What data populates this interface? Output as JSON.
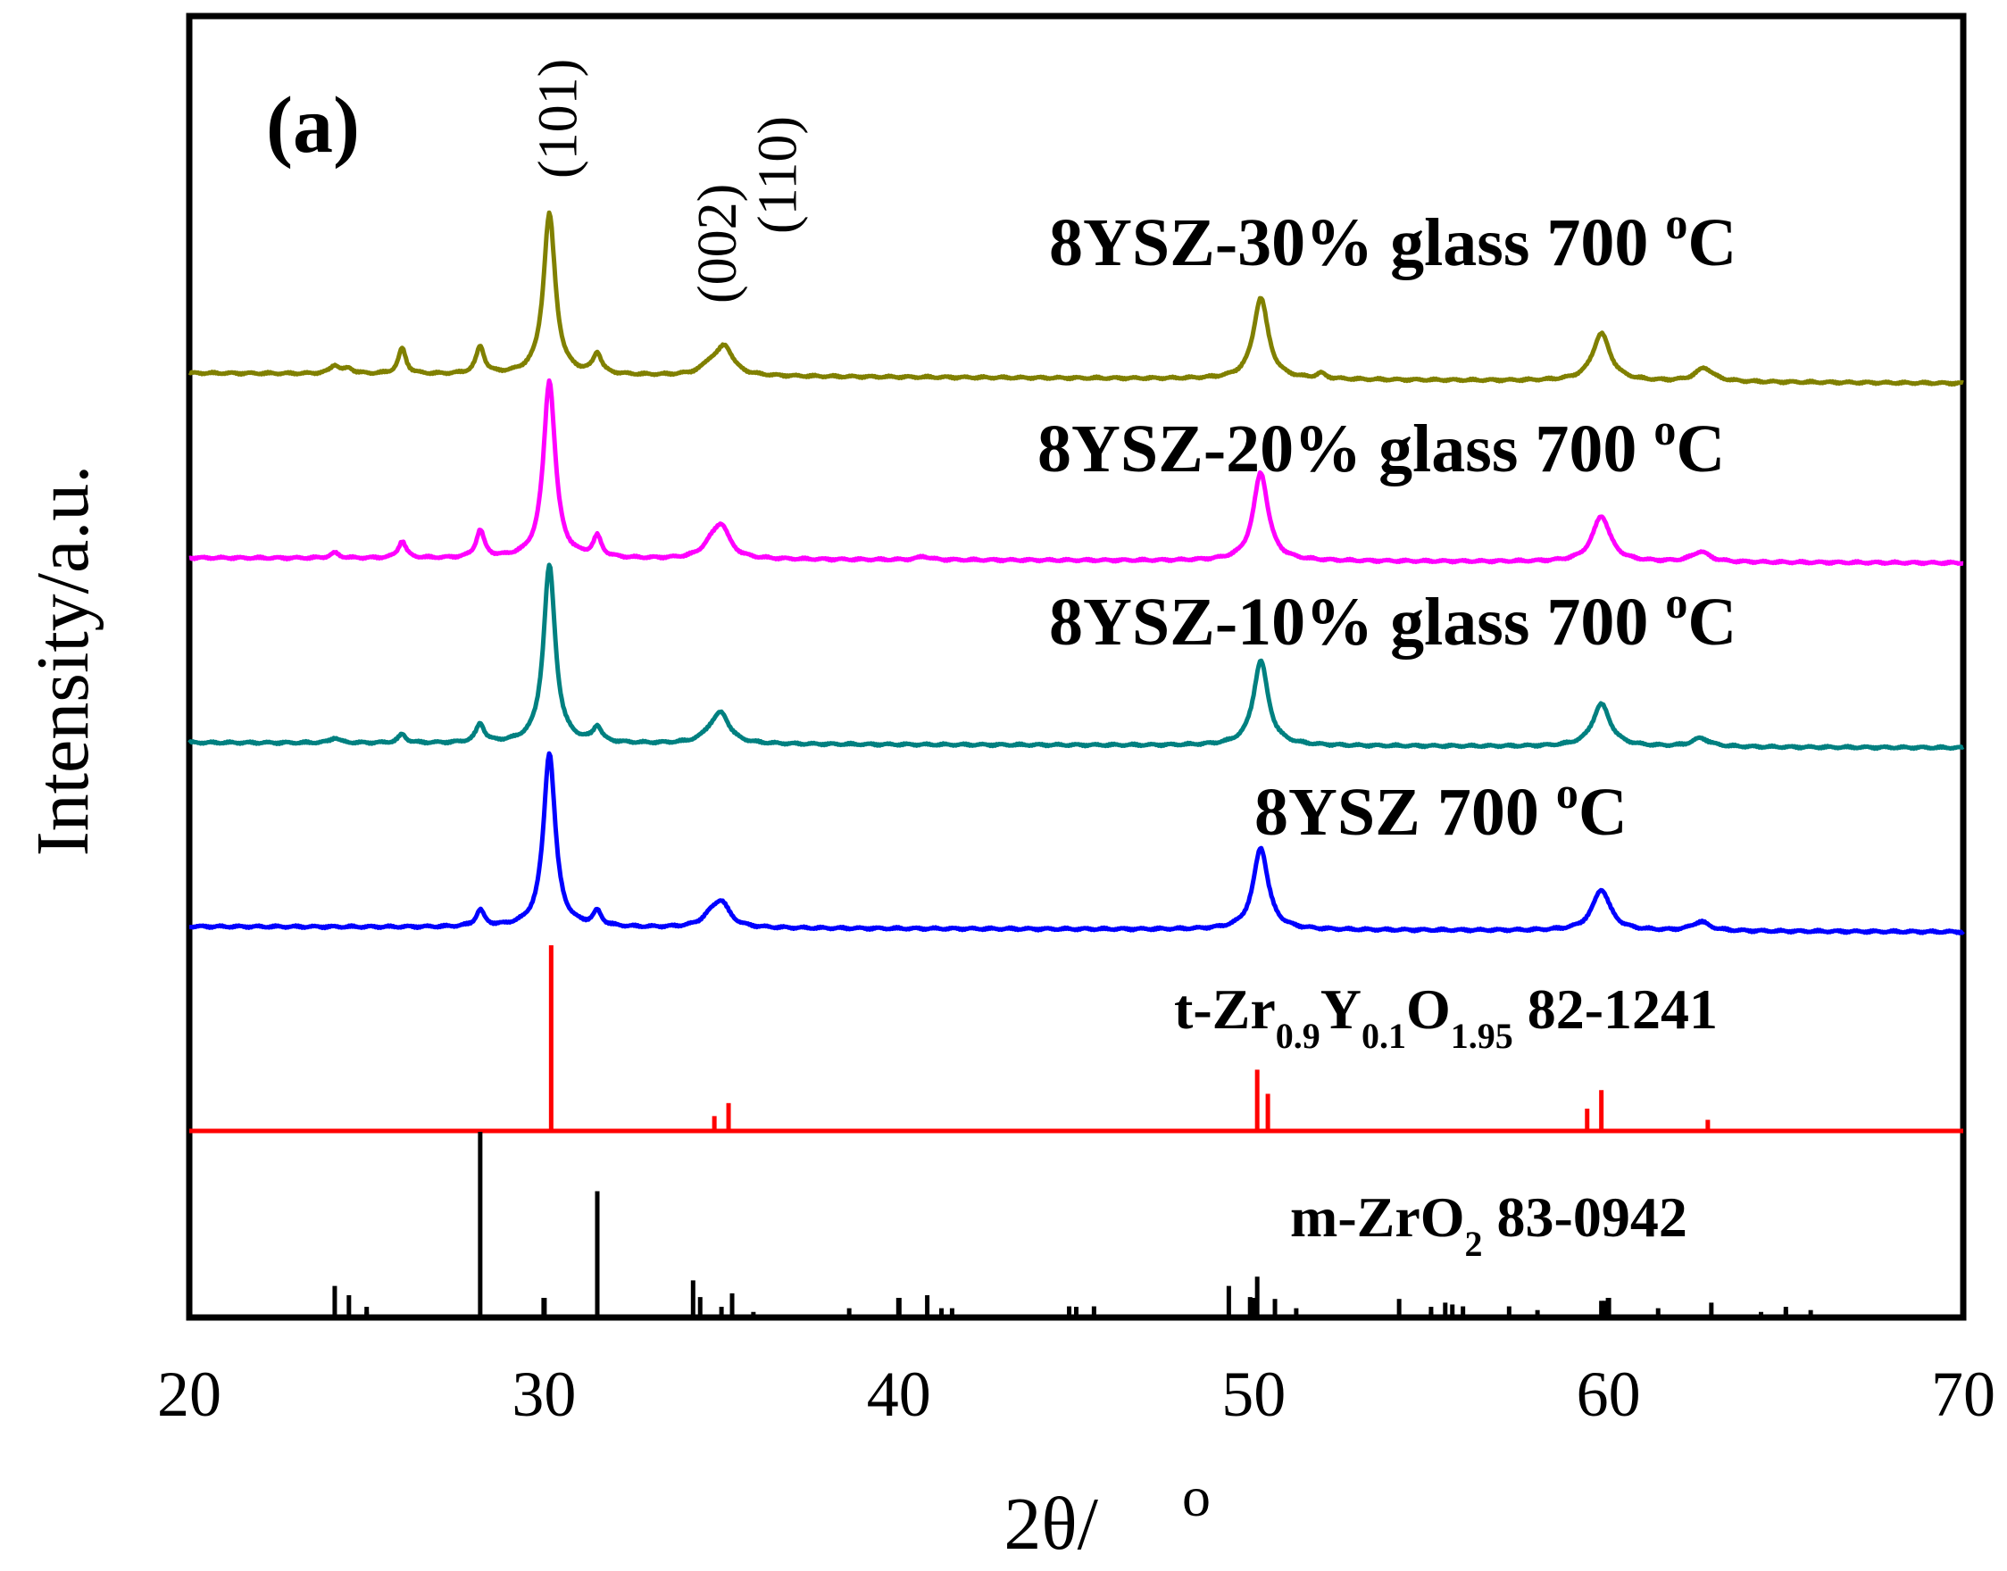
{
  "chart_data": {
    "type": "line",
    "panel_label": "(a)",
    "xlabel": "2θ/",
    "xlabel_degree": "o",
    "ylabel": "Intensity/a.u.",
    "xlim": [
      20,
      70
    ],
    "xticks": [
      "20",
      "30",
      "40",
      "50",
      "60",
      "70"
    ],
    "grid": false,
    "series": [
      {
        "name": "8YSZ-30% glass  700 °C",
        "label_main": "8YSZ-30% glass  700 ",
        "label_sup": "o",
        "label_tail": "C",
        "color": "#808000",
        "baseline_start": 0,
        "baseline_end": -0.06,
        "peaks": [
          {
            "x": 24.1,
            "h": 0.05,
            "w": 0.15
          },
          {
            "x": 24.5,
            "h": 0.03,
            "w": 0.15
          },
          {
            "x": 26.0,
            "h": 0.15,
            "w": 0.13
          },
          {
            "x": 28.2,
            "h": 0.16,
            "w": 0.14
          },
          {
            "x": 30.15,
            "h": 0.95,
            "w": 0.2
          },
          {
            "x": 31.5,
            "h": 0.12,
            "w": 0.14
          },
          {
            "x": 34.7,
            "h": 0.06,
            "w": 0.3
          },
          {
            "x": 35.1,
            "h": 0.16,
            "w": 0.28
          },
          {
            "x": 50.2,
            "h": 0.48,
            "w": 0.25
          },
          {
            "x": 51.9,
            "h": 0.03,
            "w": 0.15
          },
          {
            "x": 59.8,
            "h": 0.28,
            "w": 0.3
          },
          {
            "x": 62.7,
            "h": 0.08,
            "w": 0.3
          }
        ]
      },
      {
        "name": "8YSZ-20% glass  700 °C",
        "label_main": "8YSZ-20% glass  700 ",
        "label_sup": "o",
        "label_tail": "C",
        "color": "#ff00ff",
        "baseline_start": 0,
        "baseline_end": -0.03,
        "peaks": [
          {
            "x": 24.1,
            "h": 0.03,
            "w": 0.15
          },
          {
            "x": 26.0,
            "h": 0.1,
            "w": 0.13
          },
          {
            "x": 28.2,
            "h": 0.16,
            "w": 0.14
          },
          {
            "x": 30.15,
            "h": 1.05,
            "w": 0.2
          },
          {
            "x": 31.5,
            "h": 0.12,
            "w": 0.14
          },
          {
            "x": 34.7,
            "h": 0.06,
            "w": 0.3
          },
          {
            "x": 35.0,
            "h": 0.18,
            "w": 0.28
          },
          {
            "x": 40.7,
            "h": 0.02,
            "w": 0.2
          },
          {
            "x": 50.2,
            "h": 0.52,
            "w": 0.25
          },
          {
            "x": 59.8,
            "h": 0.27,
            "w": 0.3
          },
          {
            "x": 62.6,
            "h": 0.06,
            "w": 0.3
          }
        ]
      },
      {
        "name": "8YSZ-10% glass  700 °C",
        "label_main": "8YSZ-10% glass  700 ",
        "label_sup": "o",
        "label_tail": "C",
        "color": "#008080",
        "baseline_start": 0,
        "baseline_end": -0.03,
        "peaks": [
          {
            "x": 24.1,
            "h": 0.03,
            "w": 0.15
          },
          {
            "x": 26.0,
            "h": 0.05,
            "w": 0.13
          },
          {
            "x": 28.2,
            "h": 0.11,
            "w": 0.14
          },
          {
            "x": 30.15,
            "h": 1.05,
            "w": 0.2
          },
          {
            "x": 31.5,
            "h": 0.09,
            "w": 0.14
          },
          {
            "x": 34.7,
            "h": 0.05,
            "w": 0.3
          },
          {
            "x": 35.0,
            "h": 0.16,
            "w": 0.28
          },
          {
            "x": 50.2,
            "h": 0.5,
            "w": 0.25
          },
          {
            "x": 59.8,
            "h": 0.25,
            "w": 0.3
          },
          {
            "x": 62.6,
            "h": 0.05,
            "w": 0.3
          }
        ]
      },
      {
        "name": "8YSZ  700 °C",
        "label_main": "8YSZ  700 ",
        "label_sup": "o",
        "label_tail": "C",
        "color": "#0000ff",
        "baseline_start": 0,
        "baseline_end": -0.03,
        "peaks": [
          {
            "x": 28.2,
            "h": 0.09,
            "w": 0.14
          },
          {
            "x": 30.15,
            "h": 0.98,
            "w": 0.2
          },
          {
            "x": 31.5,
            "h": 0.08,
            "w": 0.14
          },
          {
            "x": 34.7,
            "h": 0.05,
            "w": 0.3
          },
          {
            "x": 35.0,
            "h": 0.13,
            "w": 0.28
          },
          {
            "x": 50.2,
            "h": 0.46,
            "w": 0.25
          },
          {
            "x": 59.8,
            "h": 0.23,
            "w": 0.3
          },
          {
            "x": 62.6,
            "h": 0.05,
            "w": 0.3
          }
        ]
      }
    ],
    "references": [
      {
        "name": "t-Zr0.9Y0.1O1.95 82-1241",
        "label_parts": [
          {
            "t": "t-Zr",
            "sub": false
          },
          {
            "t": "0.9",
            "sub": true
          },
          {
            "t": "Y",
            "sub": false
          },
          {
            "t": "0.1",
            "sub": true
          },
          {
            "t": "O",
            "sub": false
          },
          {
            "t": "1.95",
            "sub": true
          },
          {
            "t": "  82-1241",
            "sub": false
          }
        ],
        "color": "#ff0000",
        "lines": [
          {
            "x": 30.2,
            "h": 1.0
          },
          {
            "x": 34.8,
            "h": 0.08
          },
          {
            "x": 35.2,
            "h": 0.15
          },
          {
            "x": 43.0,
            "h": 0.01
          },
          {
            "x": 50.1,
            "h": 0.33
          },
          {
            "x": 50.4,
            "h": 0.2
          },
          {
            "x": 59.4,
            "h": 0.12
          },
          {
            "x": 59.8,
            "h": 0.22
          },
          {
            "x": 62.8,
            "h": 0.06
          }
        ]
      },
      {
        "name": "m-ZrO2 83-0942",
        "label_parts": [
          {
            "t": "m-ZrO",
            "sub": false
          },
          {
            "t": "2",
            "sub": true
          },
          {
            "t": " 83-0942",
            "sub": false
          }
        ],
        "color": "#000000",
        "lines": [
          {
            "x": 24.1,
            "h": 0.17
          },
          {
            "x": 24.5,
            "h": 0.12
          },
          {
            "x": 25.0,
            "h": 0.03
          },
          {
            "x": 28.2,
            "h": 1.0
          },
          {
            "x": 30.0,
            "h": 0.09
          },
          {
            "x": 31.5,
            "h": 0.68
          },
          {
            "x": 34.2,
            "h": 0.2
          },
          {
            "x": 34.4,
            "h": 0.11
          },
          {
            "x": 35.3,
            "h": 0.13
          },
          {
            "x": 35.9,
            "h": 0.03
          },
          {
            "x": 38.6,
            "h": 0.05
          },
          {
            "x": 40.0,
            "h": 0.1
          },
          {
            "x": 40.8,
            "h": 0.12
          },
          {
            "x": 41.2,
            "h": 0.05
          },
          {
            "x": 41.5,
            "h": 0.05
          },
          {
            "x": 44.8,
            "h": 0.06
          },
          {
            "x": 45.5,
            "h": 0.06
          },
          {
            "x": 49.3,
            "h": 0.17
          },
          {
            "x": 49.9,
            "h": 0.11
          },
          {
            "x": 50.1,
            "h": 0.22
          },
          {
            "x": 50.6,
            "h": 0.1
          },
          {
            "x": 51.2,
            "h": 0.05
          },
          {
            "x": 54.1,
            "h": 0.1
          },
          {
            "x": 55.0,
            "h": 0.03
          },
          {
            "x": 55.4,
            "h": 0.08
          },
          {
            "x": 55.6,
            "h": 0.07
          },
          {
            "x": 55.9,
            "h": 0.06
          },
          {
            "x": 57.2,
            "h": 0.06
          },
          {
            "x": 58.0,
            "h": 0.04
          },
          {
            "x": 59.8,
            "h": 0.09
          },
          {
            "x": 59.9,
            "h": 0.09
          },
          {
            "x": 61.4,
            "h": 0.05
          },
          {
            "x": 62.9,
            "h": 0.08
          },
          {
            "x": 64.3,
            "h": 0.03
          },
          {
            "x": 65.0,
            "h": 0.04
          },
          {
            "x": 65.7,
            "h": 0.04
          }
        ]
      }
    ],
    "peak_labels": [
      {
        "text": "(101)",
        "x": 30.4
      },
      {
        "text": "(002)",
        "x": 34.9
      },
      {
        "text": "(110)",
        "x": 36.6
      }
    ]
  }
}
